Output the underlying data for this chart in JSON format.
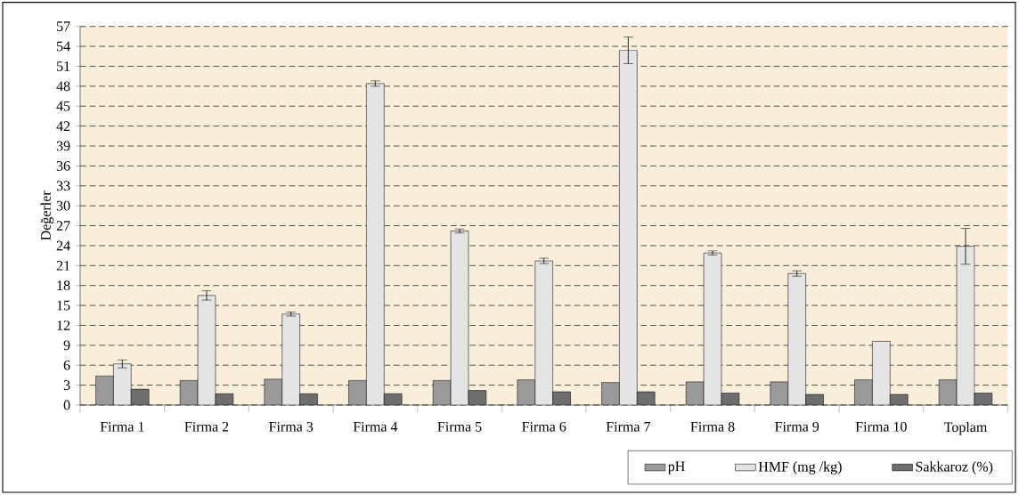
{
  "chart_data": {
    "type": "bar",
    "ylabel": "Değerler",
    "categories": [
      "Firma 1",
      "Firma 2",
      "Firma 3",
      "Firma 4",
      "Firma 5",
      "Firma 6",
      "Firma 7",
      "Firma 8",
      "Firma 9",
      "Firma 10",
      "Toplam"
    ],
    "series": [
      {
        "name": "pH",
        "color": "#9a9a9a",
        "values": [
          4.4,
          3.7,
          3.9,
          3.7,
          3.7,
          3.8,
          3.4,
          3.5,
          3.5,
          3.8,
          3.8
        ]
      },
      {
        "name": "HMF (mg /kg)",
        "color": "#e4e4e4",
        "values": [
          6.2,
          16.5,
          13.7,
          48.4,
          26.2,
          21.7,
          53.4,
          22.9,
          19.8,
          9.6,
          23.9
        ],
        "errors": [
          0.6,
          0.7,
          0.3,
          0.4,
          0.3,
          0.4,
          2.0,
          0.3,
          0.4,
          null,
          2.7
        ]
      },
      {
        "name": "Sakkaroz (%)",
        "color": "#6e6e6e",
        "values": [
          2.4,
          1.7,
          1.7,
          1.7,
          2.2,
          2.0,
          2.0,
          1.8,
          1.6,
          1.6,
          1.8
        ]
      }
    ],
    "ylim": [
      0,
      57
    ],
    "yticks": [
      0,
      3,
      6,
      9,
      12,
      15,
      18,
      21,
      24,
      27,
      30,
      33,
      36,
      39,
      42,
      45,
      48,
      51,
      54,
      57
    ],
    "grid": "y",
    "legend": "bottom right"
  }
}
